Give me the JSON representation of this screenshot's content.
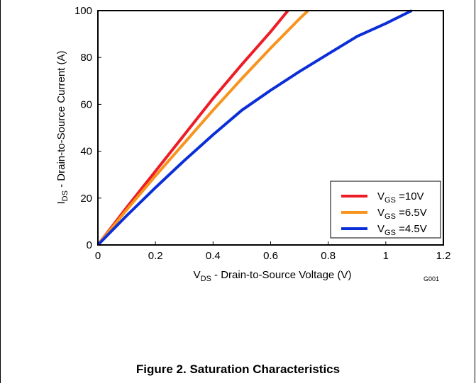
{
  "chart_data": {
    "type": "line",
    "x_axis": {
      "label_main": "V",
      "label_sub": "DS",
      "label_rest": " - Drain-to-Source Voltage (V)",
      "range": [
        0,
        1.2
      ],
      "ticks": [
        0,
        0.2,
        0.4,
        0.6,
        0.8,
        1,
        1.2
      ]
    },
    "y_axis": {
      "label_main": "I",
      "label_sub": "DS",
      "label_rest": " - Drain-to-Source Current (A)",
      "range": [
        0,
        100
      ],
      "ticks": [
        0,
        20,
        40,
        60,
        80,
        100
      ]
    },
    "grid": false,
    "legend_position": "bottom-right",
    "series": [
      {
        "name_main": "V",
        "name_sub": "GS",
        "name_rest": " =10V",
        "color": "#ee1c25",
        "points": [
          [
            0,
            0
          ],
          [
            0.1,
            16
          ],
          [
            0.2,
            31.5
          ],
          [
            0.3,
            47
          ],
          [
            0.4,
            62.5
          ],
          [
            0.5,
            77
          ],
          [
            0.6,
            91
          ],
          [
            0.66,
            100
          ]
        ]
      },
      {
        "name_main": "V",
        "name_sub": "GS",
        "name_rest": " =6.5V",
        "color": "#f7941d",
        "points": [
          [
            0,
            0
          ],
          [
            0.1,
            15
          ],
          [
            0.2,
            29.5
          ],
          [
            0.3,
            43.5
          ],
          [
            0.4,
            57.5
          ],
          [
            0.5,
            71
          ],
          [
            0.6,
            84
          ],
          [
            0.7,
            96.5
          ],
          [
            0.73,
            100
          ]
        ]
      },
      {
        "name_main": "V",
        "name_sub": "GS",
        "name_rest": " =4.5V",
        "color": "#0a2ed8",
        "points": [
          [
            0,
            0
          ],
          [
            0.1,
            12.5
          ],
          [
            0.2,
            24.5
          ],
          [
            0.3,
            36
          ],
          [
            0.4,
            47
          ],
          [
            0.5,
            57.5
          ],
          [
            0.6,
            66
          ],
          [
            0.7,
            74
          ],
          [
            0.8,
            81.5
          ],
          [
            0.9,
            89
          ],
          [
            1.0,
            94.5
          ],
          [
            1.09,
            100
          ]
        ]
      }
    ]
  },
  "code_label": "G001",
  "caption": "Figure 2. Saturation Characteristics"
}
